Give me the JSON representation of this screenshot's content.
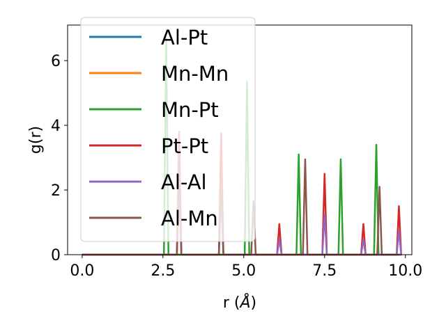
{
  "chart_data": {
    "type": "line",
    "xlabel": "r (Å)",
    "ylabel": "g(r)",
    "xlim": [
      -0.45,
      10.2
    ],
    "ylim": [
      0,
      7.1
    ],
    "xticks": [
      0.0,
      2.5,
      5.0,
      7.5,
      10.0
    ],
    "xtick_labels": [
      "0.0",
      "2.5",
      "5.0",
      "7.5",
      "10.0"
    ],
    "yticks": [
      0,
      2,
      4,
      6
    ],
    "ytick_labels": [
      "0",
      "2",
      "4",
      "6"
    ],
    "grid": false,
    "legend_position": "top-left",
    "colors": {
      "Al-Pt": "#1f77b4",
      "Mn-Mn": "#ff7f0e",
      "Mn-Pt": "#2ca02c",
      "Pt-Pt": "#d62728",
      "Al-Al": "#9467bd",
      "Al-Mn": "#8c564b"
    },
    "series": [
      {
        "name": "Al-Pt",
        "peaks": []
      },
      {
        "name": "Mn-Mn",
        "peaks": []
      },
      {
        "name": "Mn-Pt",
        "peaks": [
          [
            2.6,
            6.7
          ],
          [
            5.1,
            5.35
          ],
          [
            6.7,
            3.1
          ],
          [
            8.0,
            2.95
          ],
          [
            9.1,
            3.4
          ]
        ]
      },
      {
        "name": "Pt-Pt",
        "peaks": [
          [
            3.0,
            3.8
          ],
          [
            4.3,
            3.75
          ],
          [
            6.1,
            0.95
          ],
          [
            7.5,
            2.5
          ],
          [
            8.7,
            0.95
          ],
          [
            9.8,
            1.5
          ]
        ]
      },
      {
        "name": "Al-Al",
        "peaks": [
          [
            3.0,
            1.9
          ],
          [
            4.3,
            1.9
          ],
          [
            6.1,
            0.48
          ],
          [
            7.5,
            1.25
          ],
          [
            8.7,
            0.48
          ],
          [
            9.8,
            0.75
          ]
        ]
      },
      {
        "name": "Al-Mn",
        "peaks": [
          [
            3.0,
            3.0
          ],
          [
            4.3,
            2.2
          ],
          [
            5.3,
            1.65
          ],
          [
            6.9,
            2.95
          ],
          [
            9.2,
            2.1
          ]
        ]
      }
    ]
  }
}
